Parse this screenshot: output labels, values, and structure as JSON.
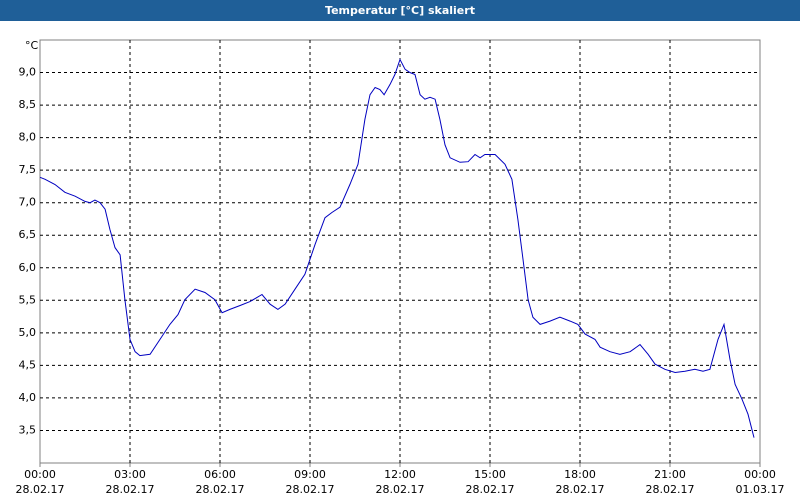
{
  "chart_data": {
    "type": "line",
    "title": "Temperatur [°C] skaliert",
    "y_unit": "°C",
    "xlim": [
      0,
      24
    ],
    "ylim": [
      3.0,
      9.5
    ],
    "grid": true,
    "xticks": [
      {
        "value": 0,
        "label": "00:00",
        "date": "28.02.17"
      },
      {
        "value": 3,
        "label": "03:00",
        "date": "28.02.17"
      },
      {
        "value": 6,
        "label": "06:00",
        "date": "28.02.17"
      },
      {
        "value": 9,
        "label": "09:00",
        "date": "28.02.17"
      },
      {
        "value": 12,
        "label": "12:00",
        "date": "28.02.17"
      },
      {
        "value": 15,
        "label": "15:00",
        "date": "28.02.17"
      },
      {
        "value": 18,
        "label": "18:00",
        "date": "28.02.17"
      },
      {
        "value": 21,
        "label": "21:00",
        "date": "28.02.17"
      },
      {
        "value": 24,
        "label": "00:00",
        "date": "01.03.17"
      }
    ],
    "yticks": [
      {
        "value": 3.5,
        "label": "3,5"
      },
      {
        "value": 4,
        "label": "4,0"
      },
      {
        "value": 4.5,
        "label": "4,5"
      },
      {
        "value": 5,
        "label": "5,0"
      },
      {
        "value": 5.5,
        "label": "5,5"
      },
      {
        "value": 6,
        "label": "6,0"
      },
      {
        "value": 6.5,
        "label": "6,5"
      },
      {
        "value": 7,
        "label": "7,0"
      },
      {
        "value": 7.5,
        "label": "7,5"
      },
      {
        "value": 8,
        "label": "8,0"
      },
      {
        "value": 8.5,
        "label": "8,5"
      },
      {
        "value": 9,
        "label": "9,0"
      }
    ],
    "x": [
      0,
      0.17,
      0.5,
      0.83,
      1.17,
      1.5,
      1.67,
      1.83,
      2,
      2.17,
      2.33,
      2.5,
      2.67,
      2.83,
      3,
      3.17,
      3.33,
      3.67,
      4,
      4.33,
      4.6,
      4.83,
      5.17,
      5.5,
      5.83,
      6.07,
      6.33,
      6.67,
      7,
      7.4,
      7.67,
      7.93,
      8.17,
      8.5,
      8.83,
      9.17,
      9.5,
      9.73,
      10,
      10.33,
      10.6,
      10.83,
      11,
      11.17,
      11.33,
      11.47,
      11.67,
      11.83,
      12,
      12.17,
      12.33,
      12.5,
      12.67,
      12.83,
      13,
      13.17,
      13.33,
      13.5,
      13.67,
      14,
      14.27,
      14.5,
      14.67,
      14.83,
      15.17,
      15.5,
      15.73,
      15.93,
      16.1,
      16.27,
      16.43,
      16.67,
      17,
      17.33,
      17.67,
      17.93,
      18.17,
      18.5,
      18.67,
      19,
      19.33,
      19.67,
      20,
      20.27,
      20.5,
      20.83,
      21.17,
      21.5,
      21.83,
      22.1,
      22.33,
      22.6,
      22.8,
      23,
      23.17,
      23.4,
      23.6,
      23.8
    ],
    "series": [
      {
        "color": "#0000c0",
        "values": [
          7.39,
          7.36,
          7.28,
          7.16,
          7.1,
          7.02,
          7.0,
          7.04,
          7.0,
          6.9,
          6.59,
          6.31,
          6.2,
          5.51,
          4.9,
          4.71,
          4.65,
          4.67,
          4.9,
          5.13,
          5.28,
          5.51,
          5.67,
          5.62,
          5.51,
          5.31,
          5.36,
          5.42,
          5.48,
          5.59,
          5.44,
          5.36,
          5.44,
          5.67,
          5.9,
          6.36,
          6.77,
          6.85,
          6.93,
          7.28,
          7.59,
          8.28,
          8.66,
          8.77,
          8.74,
          8.66,
          8.82,
          8.97,
          9.2,
          9.05,
          9.0,
          8.97,
          8.66,
          8.59,
          8.62,
          8.59,
          8.28,
          7.89,
          7.69,
          7.62,
          7.63,
          7.74,
          7.69,
          7.74,
          7.74,
          7.59,
          7.36,
          6.74,
          6.13,
          5.51,
          5.24,
          5.13,
          5.18,
          5.24,
          5.18,
          5.13,
          4.98,
          4.9,
          4.78,
          4.71,
          4.67,
          4.71,
          4.82,
          4.67,
          4.52,
          4.44,
          4.39,
          4.41,
          4.44,
          4.41,
          4.44,
          4.9,
          5.13,
          4.59,
          4.21,
          3.98,
          3.75,
          3.39
        ]
      }
    ]
  }
}
